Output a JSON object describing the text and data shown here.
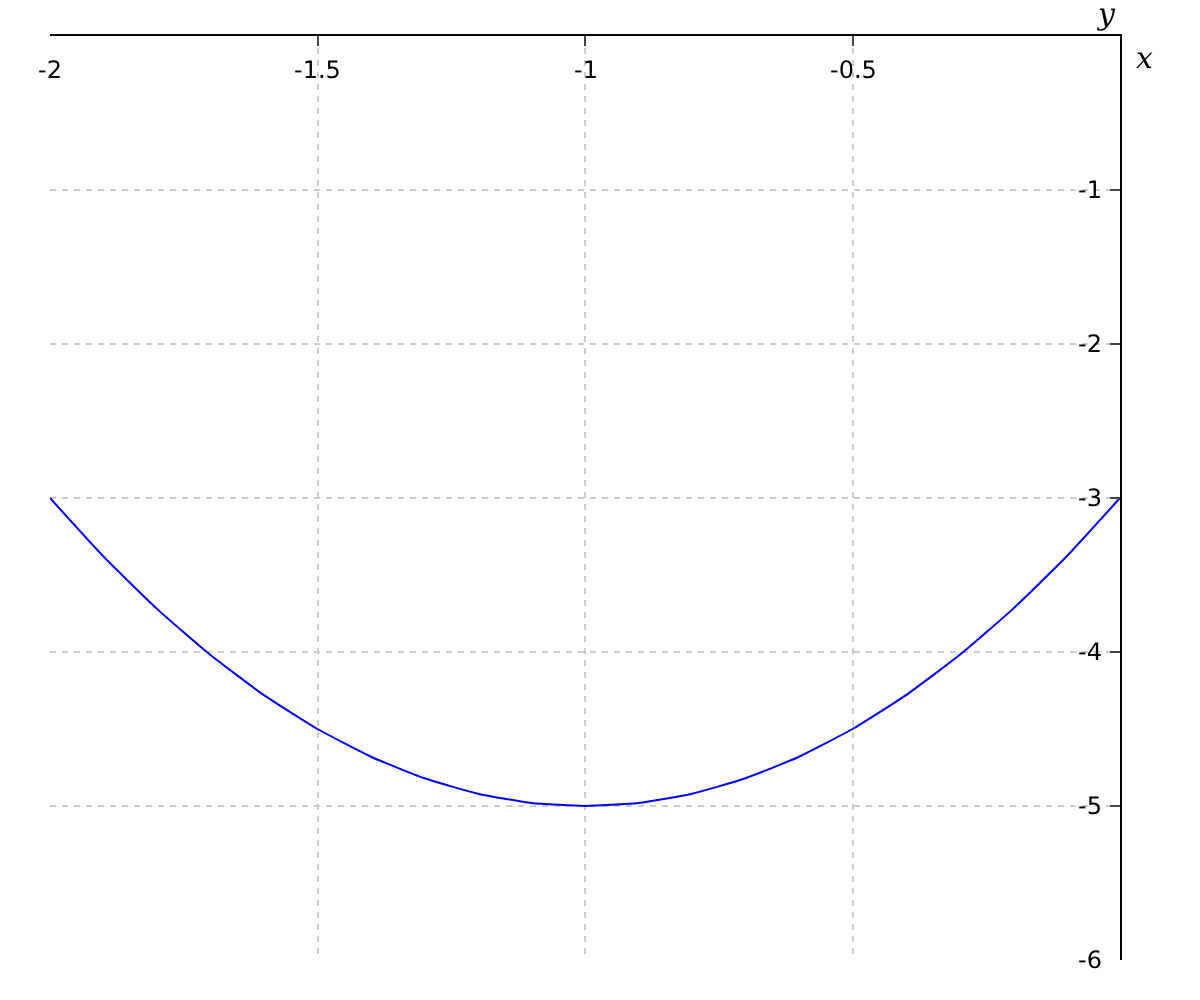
{
  "chart_data": {
    "type": "line",
    "xlabel": "x",
    "ylabel": "y",
    "x": [
      -2,
      -1.9,
      -1.8,
      -1.7,
      -1.6,
      -1.5,
      -1.4,
      -1.3,
      -1.2,
      -1.1,
      -1,
      -0.9,
      -0.8,
      -0.7,
      -0.6,
      -0.5,
      -0.4,
      -0.3,
      -0.2,
      -0.1,
      0
    ],
    "series": [
      {
        "color": "#0000ff",
        "values": [
          -3,
          -3.38,
          -3.72,
          -4.02,
          -4.28,
          -4.5,
          -4.68,
          -4.82,
          -4.92,
          -4.98,
          -5,
          -4.98,
          -4.92,
          -4.82,
          -4.68,
          -4.5,
          -4.28,
          -4.02,
          -3.72,
          -3.38,
          -3
        ]
      }
    ],
    "xlim": [
      -2,
      0
    ],
    "ylim": [
      -6,
      0
    ],
    "xticks": [
      -2,
      -1.5,
      -1,
      -0.5
    ],
    "yticks": [
      -1,
      -2,
      -3,
      -4,
      -5,
      -6
    ],
    "grid": true,
    "marker": "none",
    "line_style": "solid"
  }
}
